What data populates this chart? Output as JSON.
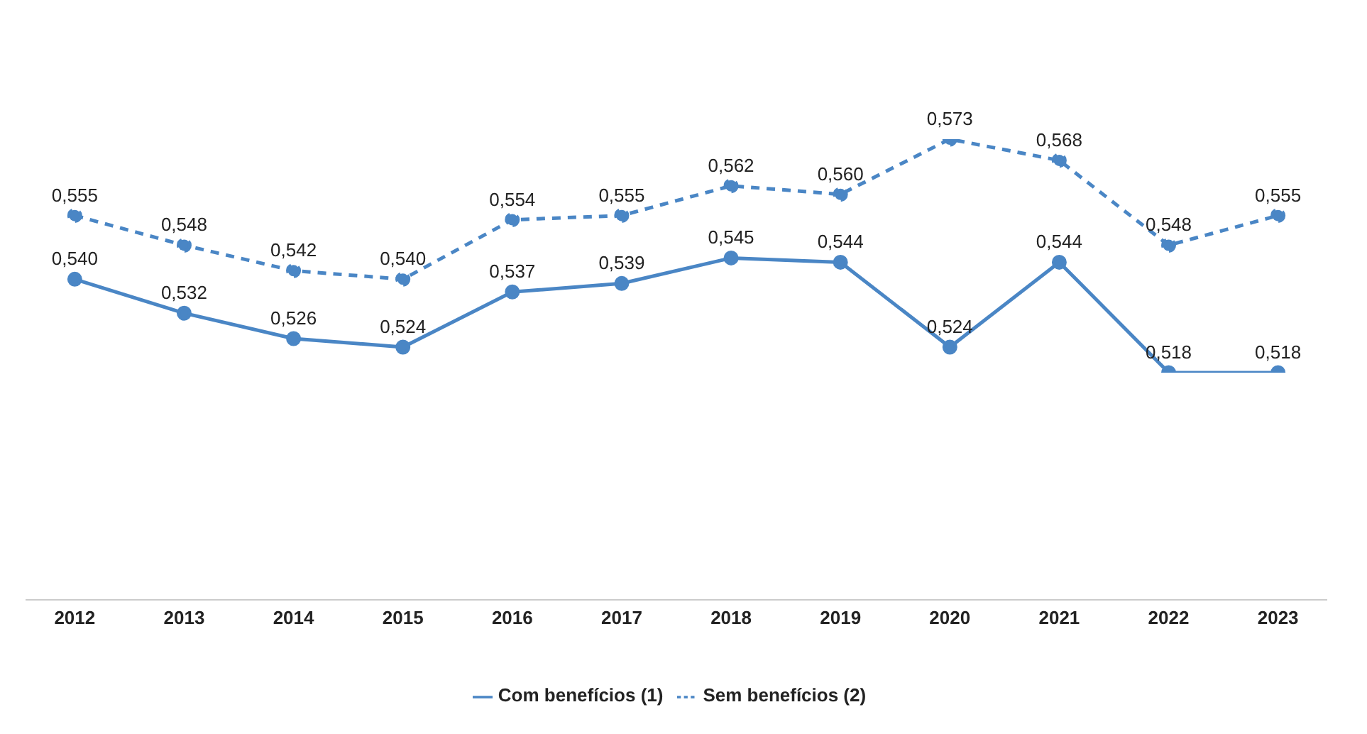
{
  "chart_data": {
    "type": "line",
    "categories": [
      "2012",
      "2013",
      "2014",
      "2015",
      "2016",
      "2017",
      "2018",
      "2019",
      "2020",
      "2021",
      "2022",
      "2023"
    ],
    "tick_labels": "x",
    "grid": false,
    "legend": "bottom",
    "marker": "circle",
    "series": [
      {
        "name": "Com benefícios (1)",
        "color": "#4a86c5",
        "line_style": "solid",
        "values": [
          0.54,
          0.532,
          0.526,
          0.524,
          0.537,
          0.539,
          0.545,
          0.544,
          0.524,
          0.544,
          0.518,
          0.518
        ],
        "value_labels": [
          "0,540",
          "0,532",
          "0,526",
          "0,524",
          "0,537",
          "0,539",
          "0,545",
          "0,544",
          "0,524",
          "0,544",
          "0,518",
          "0,518"
        ]
      },
      {
        "name": "Sem benefícios (2)",
        "color": "#4a86c5",
        "line_style": "dashed",
        "values": [
          0.555,
          0.548,
          0.542,
          0.54,
          0.554,
          0.555,
          0.562,
          0.56,
          0.573,
          0.568,
          0.548,
          0.555
        ],
        "value_labels": [
          "0,555",
          "0,548",
          "0,542",
          "0,540",
          "0,554",
          "0,555",
          "0,562",
          "0,560",
          "0,573",
          "0,568",
          "0,548",
          "0,555"
        ]
      }
    ]
  }
}
